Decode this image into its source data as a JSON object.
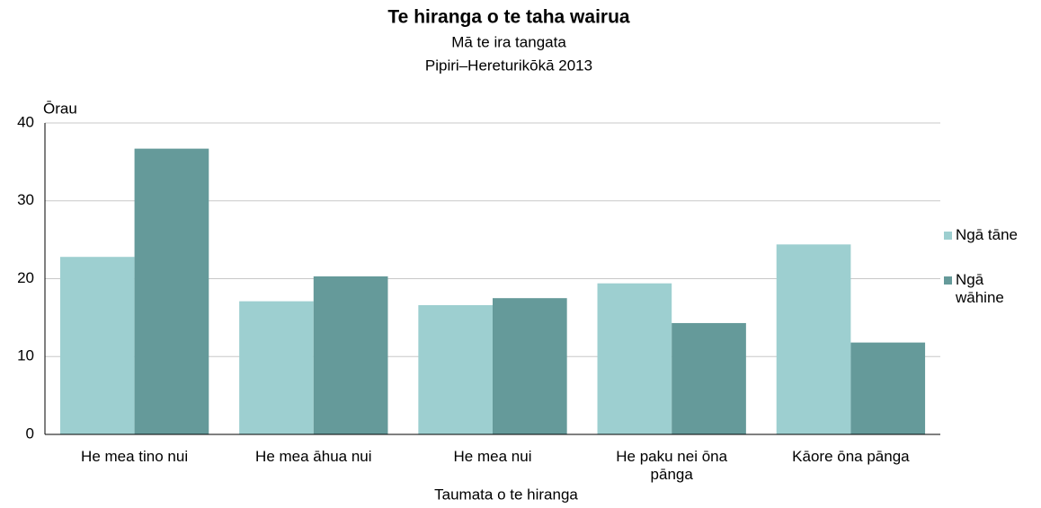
{
  "chart_data": {
    "type": "bar",
    "title": "Te hiranga o te taha wairua",
    "subtitle": [
      "Mā te ira tangata",
      "Pipiri–Hereturikōkā 2013"
    ],
    "y_label": "Ōrau",
    "x_label": "Taumata o te hiranga",
    "categories": [
      "He mea tino nui",
      "He mea āhua nui",
      "He mea nui",
      "He paku nei ōna pānga",
      "Kāore ōna pānga"
    ],
    "series": [
      {
        "name": "Ngā tāne",
        "color": "#9dcfd0",
        "values": [
          22.8,
          17.1,
          16.6,
          19.4,
          24.4
        ]
      },
      {
        "name": "Ngā wāhine",
        "color": "#659a9a",
        "values": [
          36.7,
          20.3,
          17.5,
          14.3,
          11.8
        ]
      }
    ],
    "ylim": [
      0,
      40
    ],
    "yticks": [
      0,
      10,
      20,
      30,
      40
    ],
    "grid": true,
    "legend": "right"
  }
}
